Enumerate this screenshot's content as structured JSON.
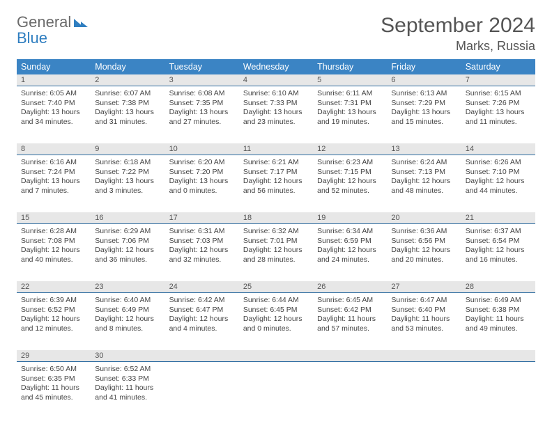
{
  "logo": {
    "text1": "General",
    "text2": "Blue"
  },
  "title": "September 2024",
  "location": "Marks, Russia",
  "daynames": [
    "Sunday",
    "Monday",
    "Tuesday",
    "Wednesday",
    "Thursday",
    "Friday",
    "Saturday"
  ],
  "colors": {
    "header_bg": "#3b84c4",
    "header_text": "#ffffff",
    "cell_top_bg": "#e7e7e7",
    "cell_top_border": "#2a6aa0",
    "text": "#444444",
    "logo_gray": "#6b6b6b",
    "logo_blue": "#2f7ec0"
  },
  "days": [
    {
      "n": "1",
      "sunrise": "6:05 AM",
      "sunset": "7:40 PM",
      "day_h": 13,
      "day_m": 34
    },
    {
      "n": "2",
      "sunrise": "6:07 AM",
      "sunset": "7:38 PM",
      "day_h": 13,
      "day_m": 31
    },
    {
      "n": "3",
      "sunrise": "6:08 AM",
      "sunset": "7:35 PM",
      "day_h": 13,
      "day_m": 27
    },
    {
      "n": "4",
      "sunrise": "6:10 AM",
      "sunset": "7:33 PM",
      "day_h": 13,
      "day_m": 23
    },
    {
      "n": "5",
      "sunrise": "6:11 AM",
      "sunset": "7:31 PM",
      "day_h": 13,
      "day_m": 19
    },
    {
      "n": "6",
      "sunrise": "6:13 AM",
      "sunset": "7:29 PM",
      "day_h": 13,
      "day_m": 15
    },
    {
      "n": "7",
      "sunrise": "6:15 AM",
      "sunset": "7:26 PM",
      "day_h": 13,
      "day_m": 11
    },
    {
      "n": "8",
      "sunrise": "6:16 AM",
      "sunset": "7:24 PM",
      "day_h": 13,
      "day_m": 7
    },
    {
      "n": "9",
      "sunrise": "6:18 AM",
      "sunset": "7:22 PM",
      "day_h": 13,
      "day_m": 3
    },
    {
      "n": "10",
      "sunrise": "6:20 AM",
      "sunset": "7:20 PM",
      "day_h": 13,
      "day_m": 0
    },
    {
      "n": "11",
      "sunrise": "6:21 AM",
      "sunset": "7:17 PM",
      "day_h": 12,
      "day_m": 56
    },
    {
      "n": "12",
      "sunrise": "6:23 AM",
      "sunset": "7:15 PM",
      "day_h": 12,
      "day_m": 52
    },
    {
      "n": "13",
      "sunrise": "6:24 AM",
      "sunset": "7:13 PM",
      "day_h": 12,
      "day_m": 48
    },
    {
      "n": "14",
      "sunrise": "6:26 AM",
      "sunset": "7:10 PM",
      "day_h": 12,
      "day_m": 44
    },
    {
      "n": "15",
      "sunrise": "6:28 AM",
      "sunset": "7:08 PM",
      "day_h": 12,
      "day_m": 40
    },
    {
      "n": "16",
      "sunrise": "6:29 AM",
      "sunset": "7:06 PM",
      "day_h": 12,
      "day_m": 36
    },
    {
      "n": "17",
      "sunrise": "6:31 AM",
      "sunset": "7:03 PM",
      "day_h": 12,
      "day_m": 32
    },
    {
      "n": "18",
      "sunrise": "6:32 AM",
      "sunset": "7:01 PM",
      "day_h": 12,
      "day_m": 28
    },
    {
      "n": "19",
      "sunrise": "6:34 AM",
      "sunset": "6:59 PM",
      "day_h": 12,
      "day_m": 24
    },
    {
      "n": "20",
      "sunrise": "6:36 AM",
      "sunset": "6:56 PM",
      "day_h": 12,
      "day_m": 20
    },
    {
      "n": "21",
      "sunrise": "6:37 AM",
      "sunset": "6:54 PM",
      "day_h": 12,
      "day_m": 16
    },
    {
      "n": "22",
      "sunrise": "6:39 AM",
      "sunset": "6:52 PM",
      "day_h": 12,
      "day_m": 12
    },
    {
      "n": "23",
      "sunrise": "6:40 AM",
      "sunset": "6:49 PM",
      "day_h": 12,
      "day_m": 8
    },
    {
      "n": "24",
      "sunrise": "6:42 AM",
      "sunset": "6:47 PM",
      "day_h": 12,
      "day_m": 4
    },
    {
      "n": "25",
      "sunrise": "6:44 AM",
      "sunset": "6:45 PM",
      "day_h": 12,
      "day_m": 0
    },
    {
      "n": "26",
      "sunrise": "6:45 AM",
      "sunset": "6:42 PM",
      "day_h": 11,
      "day_m": 57
    },
    {
      "n": "27",
      "sunrise": "6:47 AM",
      "sunset": "6:40 PM",
      "day_h": 11,
      "day_m": 53
    },
    {
      "n": "28",
      "sunrise": "6:49 AM",
      "sunset": "6:38 PM",
      "day_h": 11,
      "day_m": 49
    },
    {
      "n": "29",
      "sunrise": "6:50 AM",
      "sunset": "6:35 PM",
      "day_h": 11,
      "day_m": 45
    },
    {
      "n": "30",
      "sunrise": "6:52 AM",
      "sunset": "6:33 PM",
      "day_h": 11,
      "day_m": 41
    }
  ]
}
